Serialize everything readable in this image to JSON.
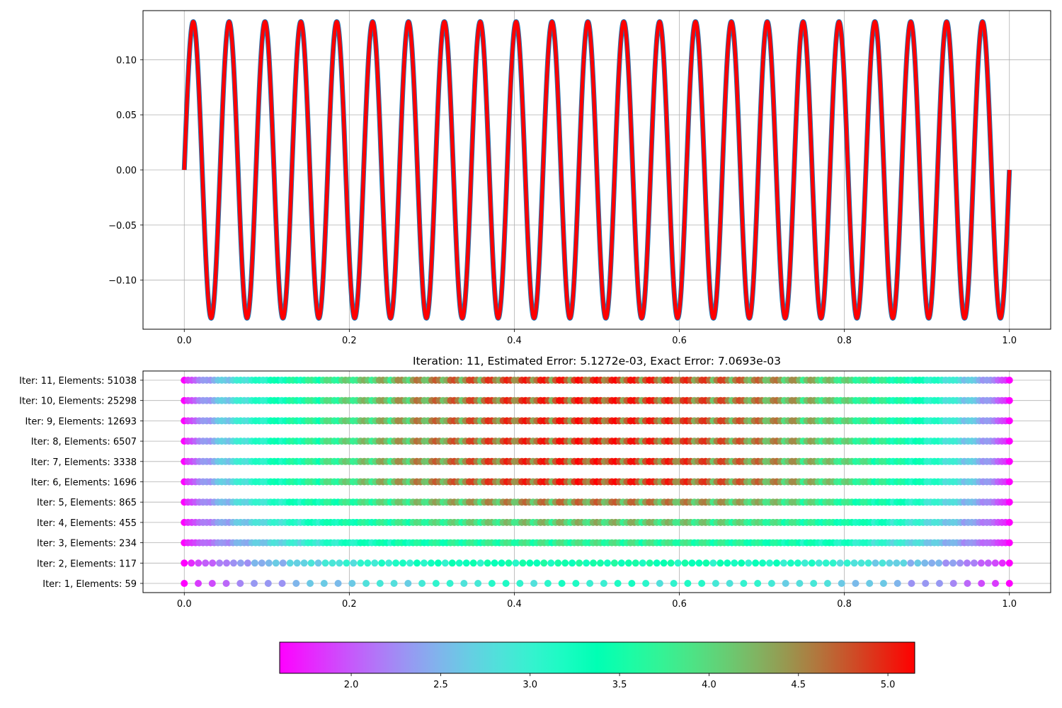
{
  "chart_data": [
    {
      "type": "line",
      "series": [
        {
          "color": "#1f77b4",
          "amplitude": 0.1345,
          "cycles": 23,
          "description_role": "exact"
        },
        {
          "color": "#ff0000",
          "amplitude": 0.1345,
          "cycles": 23,
          "description_role": "approx"
        }
      ],
      "xlim": [
        -0.05,
        1.05
      ],
      "ylim": [
        -0.1445,
        0.1445
      ],
      "xticks": [
        "0.0",
        "0.2",
        "0.4",
        "0.6",
        "0.8",
        "1.0"
      ],
      "xtick_values": [
        0,
        0.2,
        0.4,
        0.6,
        0.8,
        1.0
      ],
      "yticks": [
        "0.10",
        "0.05",
        "0.00",
        "−0.05",
        "−0.10"
      ],
      "ytick_values": [
        0.1,
        0.05,
        0.0,
        -0.05,
        -0.1
      ],
      "grid": true
    },
    {
      "type": "scatter",
      "title": "Iteration: 11, Estimated Error: 5.1272e-03, Exact Error: 7.0693e-03",
      "xlim": [
        -0.05,
        1.05
      ],
      "xticks": [
        "0.0",
        "0.2",
        "0.4",
        "0.6",
        "0.8",
        "1.0"
      ],
      "xtick_values": [
        0,
        0.2,
        0.4,
        0.6,
        0.8,
        1.0
      ],
      "grid": true,
      "rows": [
        {
          "label": "Iter: 1, Elements: 59",
          "elements": 59
        },
        {
          "label": "Iter: 2, Elements: 117",
          "elements": 117
        },
        {
          "label": "Iter: 3, Elements: 234",
          "elements": 234
        },
        {
          "label": "Iter: 4, Elements: 455",
          "elements": 455
        },
        {
          "label": "Iter: 5, Elements: 865",
          "elements": 865
        },
        {
          "label": "Iter: 6, Elements: 1696",
          "elements": 1696
        },
        {
          "label": "Iter: 7, Elements: 3338",
          "elements": 3338
        },
        {
          "label": "Iter: 8, Elements: 6507",
          "elements": 6507
        },
        {
          "label": "Iter: 9, Elements: 12693",
          "elements": 12693
        },
        {
          "label": "Iter: 10, Elements: 25298",
          "elements": 25298
        },
        {
          "label": "Iter: 11, Elements: 51038",
          "elements": 51038
        }
      ],
      "colorscale": "rainbow",
      "color_value_range": [
        1.6,
        5.15
      ]
    },
    {
      "type": "heatmap",
      "colorbar_range": [
        1.6,
        5.15
      ],
      "colorbar_ticks": [
        "2.0",
        "2.5",
        "3.0",
        "3.5",
        "4.0",
        "4.5",
        "5.0"
      ],
      "colorbar_tick_values": [
        2.0,
        2.5,
        3.0,
        3.5,
        4.0,
        4.5,
        5.0
      ],
      "colorscale": "rainbow"
    }
  ]
}
